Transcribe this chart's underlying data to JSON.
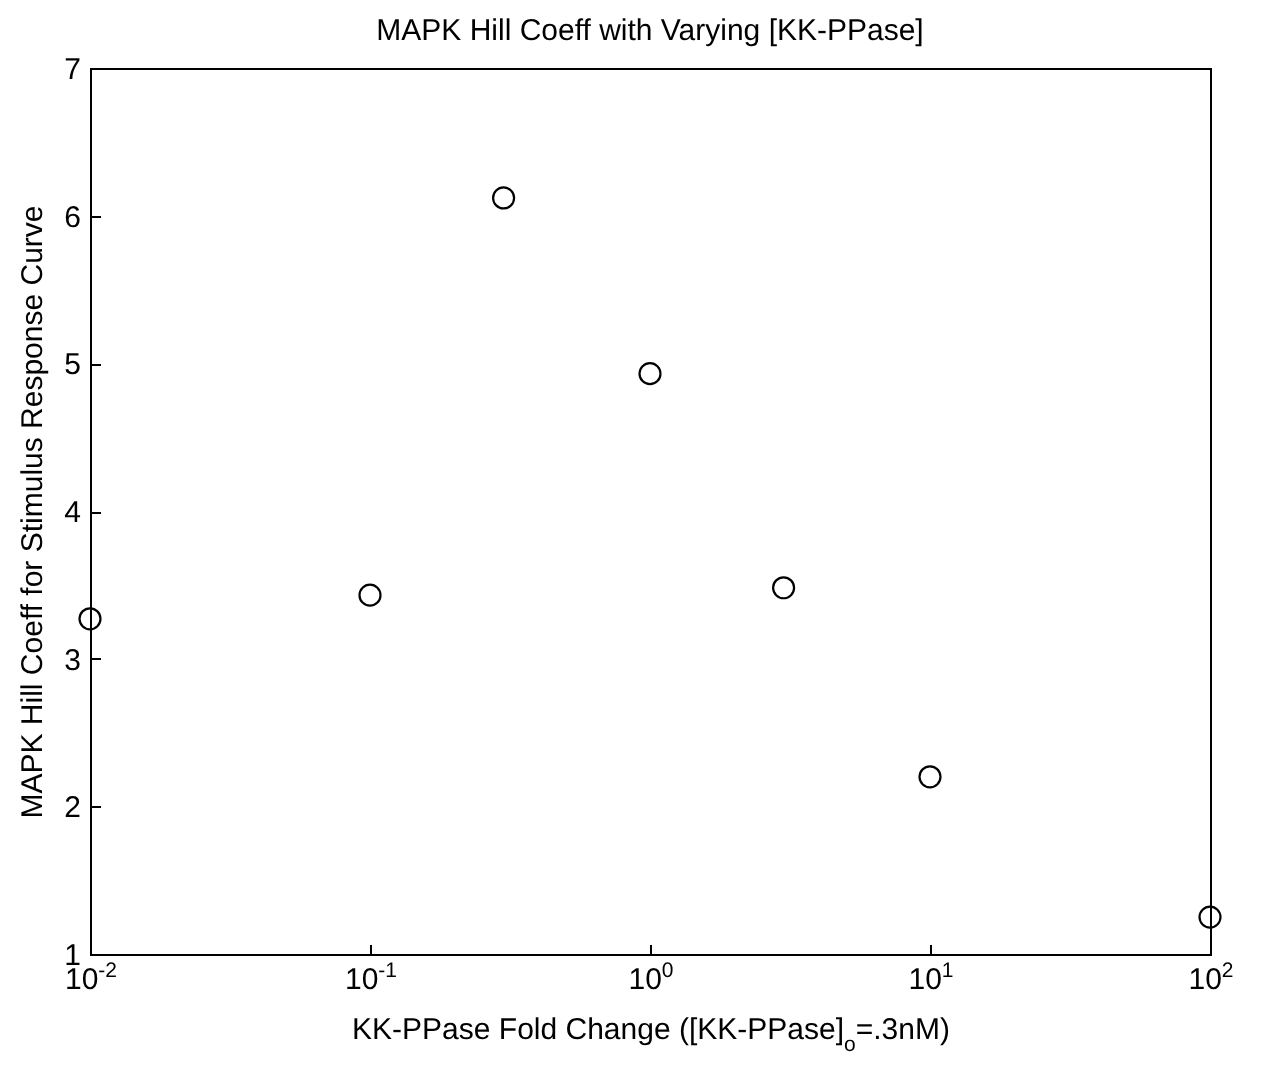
{
  "chart_data": {
    "type": "scatter",
    "title": "MAPK Hill Coeff with Varying [KK-PPase]",
    "xlabel": "KK-PPase Fold Change ([KK-PPase]$_{o}$=.3nM)",
    "ylabel": "MAPK Hill Coeff for Stimulus Response Curve",
    "x": [
      0.01,
      0.1,
      0.3,
      1,
      3,
      10,
      100
    ],
    "series": [
      {
        "color": "#000000",
        "values": [
          3.27,
          3.43,
          6.12,
          4.93,
          3.48,
          2.2,
          1.25
        ]
      }
    ],
    "log": "x",
    "xlim": [
      0.01,
      100
    ],
    "xticks": [
      {
        "value": 0.01,
        "label": "10$^{-2}$"
      },
      {
        "value": 0.1,
        "label": "10$^{-1}$"
      },
      {
        "value": 1,
        "label": "10$^{0}$"
      },
      {
        "value": 10,
        "label": "10$^{1}$"
      },
      {
        "value": 100,
        "label": "10$^{2}$"
      }
    ],
    "ylim": [
      1,
      7
    ],
    "yticks": [
      1,
      2,
      3,
      4,
      5,
      6,
      7
    ],
    "grid": false,
    "legend": false,
    "marker": "circle"
  }
}
